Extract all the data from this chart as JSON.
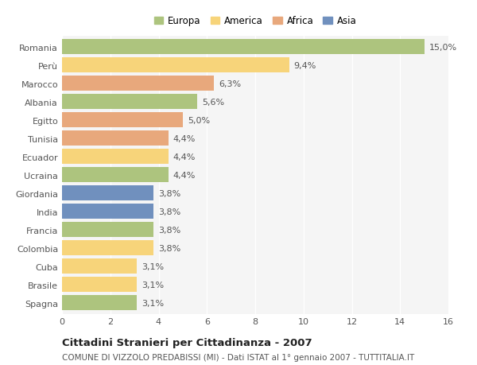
{
  "countries": [
    "Romania",
    "Perù",
    "Marocco",
    "Albania",
    "Egitto",
    "Tunisia",
    "Ecuador",
    "Ucraina",
    "Giordania",
    "India",
    "Francia",
    "Colombia",
    "Cuba",
    "Brasile",
    "Spagna"
  ],
  "values": [
    15.0,
    9.4,
    6.3,
    5.6,
    5.0,
    4.4,
    4.4,
    4.4,
    3.8,
    3.8,
    3.8,
    3.8,
    3.1,
    3.1,
    3.1
  ],
  "continents": [
    "Europa",
    "America",
    "Africa",
    "Europa",
    "Africa",
    "Africa",
    "America",
    "Europa",
    "Asia",
    "Asia",
    "Europa",
    "America",
    "America",
    "America",
    "Europa"
  ],
  "colors": {
    "Europa": "#adc47e",
    "America": "#f7d47a",
    "Africa": "#e8a87c",
    "Asia": "#7090be"
  },
  "legend_order": [
    "Europa",
    "America",
    "Africa",
    "Asia"
  ],
  "xlim": [
    0,
    16
  ],
  "xticks": [
    0,
    2,
    4,
    6,
    8,
    10,
    12,
    14,
    16
  ],
  "title": "Cittadini Stranieri per Cittadinanza - 2007",
  "subtitle": "COMUNE DI VIZZOLO PREDABISSI (MI) - Dati ISTAT al 1° gennaio 2007 - TUTTITALIA.IT",
  "title_fontsize": 9.5,
  "subtitle_fontsize": 7.5,
  "label_fontsize": 8,
  "tick_fontsize": 8,
  "legend_fontsize": 8.5,
  "background_color": "#ffffff",
  "plot_bg_color": "#f5f5f5",
  "grid_color": "#ffffff",
  "bar_height": 0.82
}
